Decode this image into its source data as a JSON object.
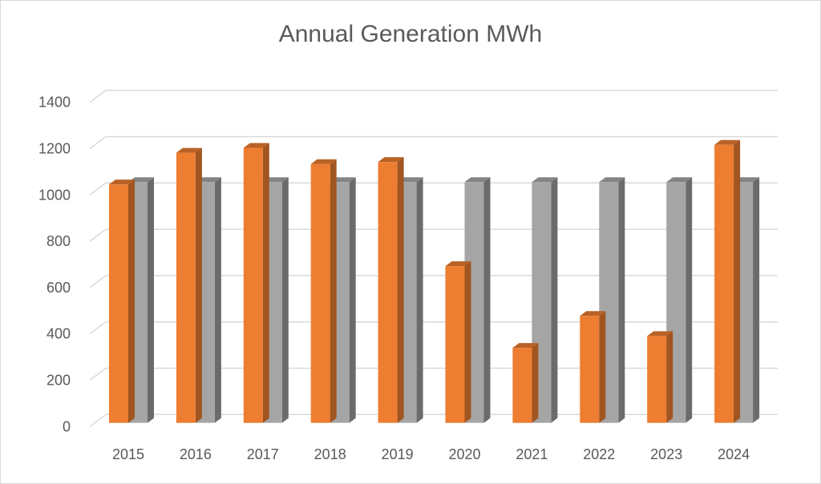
{
  "chart_data": {
    "type": "bar",
    "title": "Annual Generation MWh",
    "style": "3d-clustered-column",
    "categories": [
      "2015",
      "2016",
      "2017",
      "2018",
      "2019",
      "2020",
      "2021",
      "2022",
      "2023",
      "2024"
    ],
    "series": [
      {
        "values": [
          1030,
          1167,
          1188,
          1118,
          1127,
          677,
          324,
          462,
          375,
          1201
        ],
        "color": "#ED7D31"
      },
      {
        "values": [
          1040,
          1040,
          1040,
          1040,
          1040,
          1040,
          1040,
          1040,
          1040,
          1040
        ],
        "color": "#A5A5A5"
      }
    ],
    "ylim": [
      0,
      1400
    ],
    "yticks": [
      "0",
      "200",
      "400",
      "600",
      "800",
      "1000",
      "1200",
      "1400"
    ],
    "grid": true,
    "legend": "none"
  }
}
